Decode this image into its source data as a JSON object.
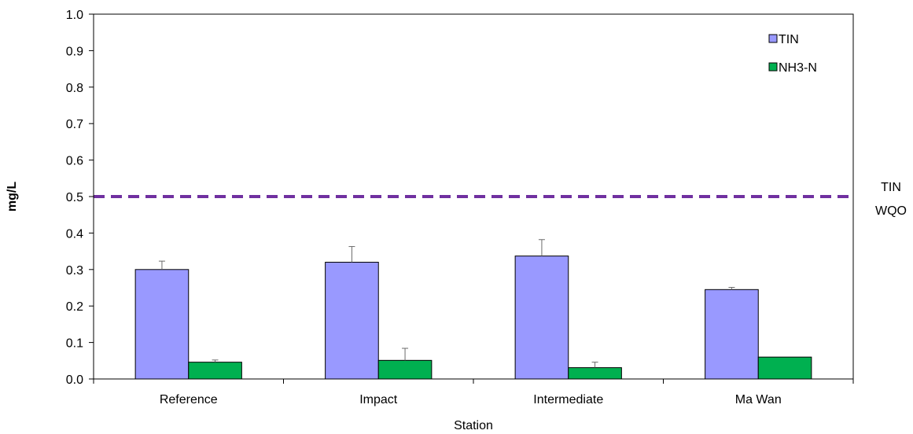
{
  "chart_data": {
    "type": "bar",
    "categories": [
      "Reference",
      "Impact",
      "Intermediate",
      "Ma Wan"
    ],
    "series": [
      {
        "name": "TIN",
        "values": [
          0.3,
          0.32,
          0.337,
          0.245
        ],
        "errors": [
          0.023,
          0.043,
          0.045,
          0.006
        ],
        "color": "#9999ff"
      },
      {
        "name": "NH3-N",
        "values": [
          0.046,
          0.051,
          0.031,
          0.06
        ],
        "errors": [
          0.006,
          0.033,
          0.015,
          0.0
        ],
        "color": "#00b050"
      }
    ],
    "reference_line": {
      "value": 0.5,
      "label_line1": "TIN",
      "label_line2": "WQO",
      "color": "#7030a0"
    },
    "xlabel": "Station",
    "ylabel": "mg/L",
    "ylim": [
      0.0,
      1.0
    ],
    "yticks": [
      "0.0",
      "0.1",
      "0.2",
      "0.3",
      "0.4",
      "0.5",
      "0.6",
      "0.7",
      "0.8",
      "0.9",
      "1.0"
    ],
    "grid": false,
    "legend_position": "top-right"
  }
}
